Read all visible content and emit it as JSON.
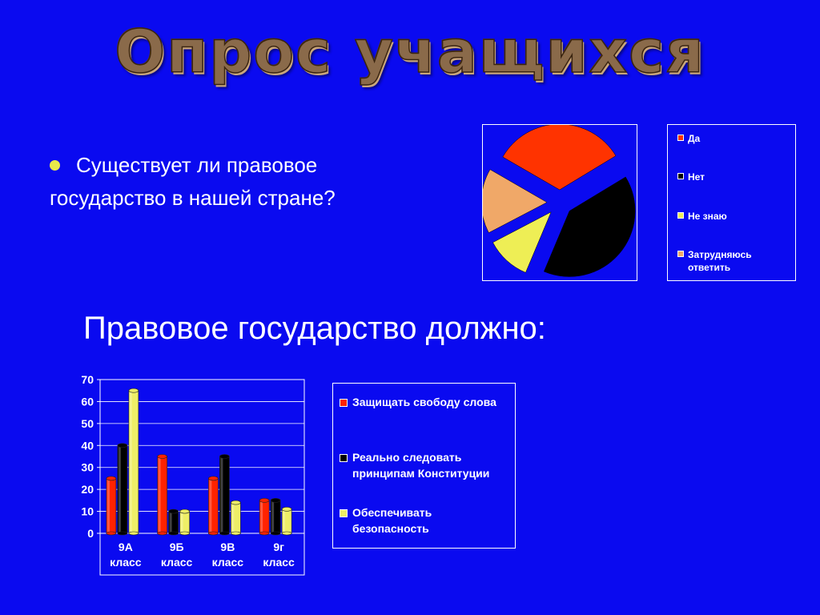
{
  "slide": {
    "title": "Опрос учащихся",
    "question": "Существует ли правовое государство в нашей стране?",
    "subtitle": "Правовое государство должно:"
  },
  "chart_data": [
    {
      "type": "pie",
      "title": "",
      "legend_position": "right",
      "exploded": true,
      "slices": [
        {
          "label": "Да",
          "value": 33,
          "color": "#ff3300"
        },
        {
          "label": "Нет",
          "value": 40,
          "color": "#000000"
        },
        {
          "label": "Не знаю",
          "value": 11,
          "color": "#eeee55"
        },
        {
          "label": "Затрудняюсь ответить",
          "value": 16,
          "color": "#f0a868"
        }
      ]
    },
    {
      "type": "bar",
      "title": "",
      "xlabel": "",
      "ylabel": "",
      "ylim": [
        0,
        70
      ],
      "yticks": [
        0,
        10,
        20,
        30,
        40,
        50,
        60,
        70
      ],
      "grid": true,
      "legend_position": "right",
      "categories": [
        "9А класс",
        "9Б класс",
        "9В класс",
        "9г класс"
      ],
      "series": [
        {
          "name": "Защищать свободу слова",
          "color": "#ff2200",
          "values": [
            25,
            35,
            25,
            15
          ]
        },
        {
          "name": "Реально следовать принципам Конституции",
          "color": "#000000",
          "values": [
            40,
            10,
            35,
            15
          ]
        },
        {
          "name": "Обеспечивать безопасность",
          "color": "#eeee66",
          "values": [
            65,
            10,
            14,
            11
          ]
        }
      ]
    }
  ]
}
